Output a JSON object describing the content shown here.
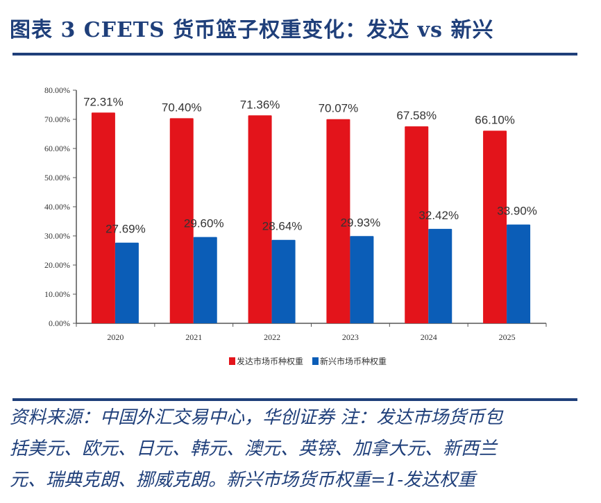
{
  "header": {
    "title": "图表 3   CFETS 货币篮子权重变化：发达 vs 新兴"
  },
  "colors": {
    "title": "#1f3f7a",
    "developed": "#e3141b",
    "emerging": "#0b5db7",
    "axis": "#555555"
  },
  "chart_data": {
    "type": "bar",
    "title": "CFETS货币篮子权重变化：发达 vs 新兴",
    "xlabel": "",
    "ylabel": "",
    "categories": [
      "2020",
      "2021",
      "2022",
      "2023",
      "2024",
      "2025"
    ],
    "series": [
      {
        "name": "发达市场币种权重",
        "color": "#e3141b",
        "values": [
          72.31,
          70.4,
          71.36,
          70.07,
          67.58,
          66.1
        ],
        "labels": [
          "72.31%",
          "70.40%",
          "71.36%",
          "70.07%",
          "67.58%",
          "66.10%"
        ]
      },
      {
        "name": "新兴市场币种权重",
        "color": "#0b5db7",
        "values": [
          27.69,
          29.6,
          28.64,
          29.93,
          32.42,
          33.9
        ],
        "labels": [
          "27.69%",
          "29.60%",
          "28.64%",
          "29.93%",
          "32.42%",
          "33.90%"
        ]
      }
    ],
    "yticks": [
      "0.00%",
      "10.00%",
      "20.00%",
      "30.00%",
      "40.00%",
      "50.00%",
      "60.00%",
      "70.00%",
      "80.00%"
    ],
    "ylim": [
      0,
      80
    ],
    "grid": false,
    "legend_position": "bottom"
  },
  "footer": {
    "note_line1": "资料来源：中国外汇交易中心，华创证券   注：发达市场货币包",
    "note_line2": "括美元、欧元、日元、韩元、澳元、英镑、加拿大元、新西兰",
    "note_line3": "元、瑞典克朗、挪威克朗。新兴市场货币权重=1-发达权重"
  }
}
